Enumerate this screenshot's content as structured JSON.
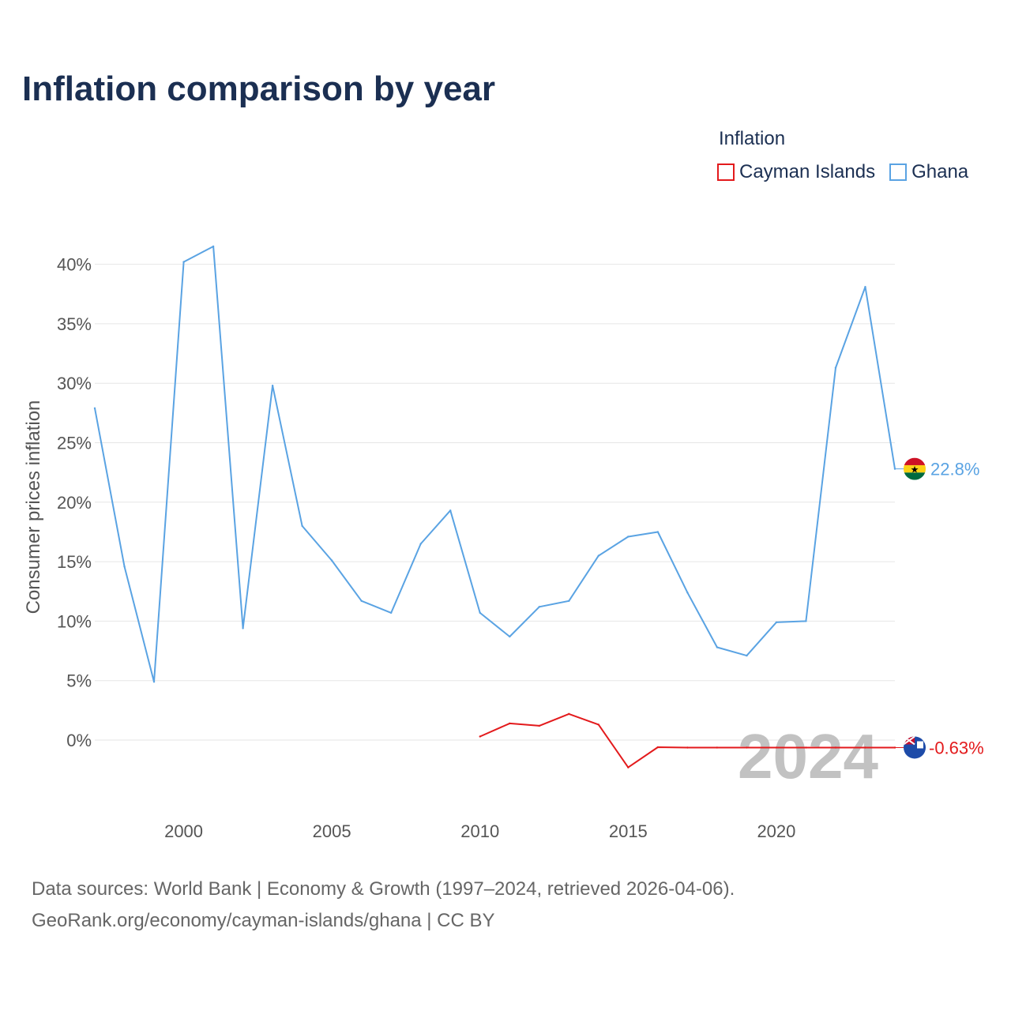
{
  "title": "Inflation comparison by year",
  "legend": {
    "title": "Inflation",
    "items": [
      {
        "label": "Cayman Islands",
        "color": "#e31a1c"
      },
      {
        "label": "Ghana",
        "color": "#5aa3e3"
      }
    ]
  },
  "current_year": "2024",
  "chart_data": {
    "type": "line",
    "title": "Inflation comparison by year",
    "xlabel": "",
    "ylabel": "Consumer prices inflation",
    "xlim": [
      1997,
      2024
    ],
    "ylim": [
      -6,
      43
    ],
    "y_ticks": [
      0,
      5,
      10,
      15,
      20,
      25,
      30,
      35,
      40
    ],
    "y_tick_labels": [
      "0%",
      "5%",
      "10%",
      "15%",
      "20%",
      "25%",
      "30%",
      "35%",
      "40%"
    ],
    "x_ticks": [
      2000,
      2005,
      2010,
      2015,
      2020
    ],
    "x_tick_labels": [
      "2000",
      "2005",
      "2010",
      "2015",
      "2020"
    ],
    "grid": "horizontal",
    "series": [
      {
        "name": "Ghana",
        "color": "#5aa3e3",
        "end_label": "22.8%",
        "x": [
          1997,
          1998,
          1999,
          2000,
          2001,
          2002,
          2003,
          2004,
          2005,
          2006,
          2007,
          2008,
          2009,
          2010,
          2011,
          2012,
          2013,
          2014,
          2015,
          2016,
          2017,
          2018,
          2019,
          2020,
          2021,
          2022,
          2023,
          2024
        ],
        "values": [
          27.9,
          14.6,
          4.9,
          40.2,
          41.5,
          9.4,
          29.8,
          18.0,
          15.1,
          11.7,
          10.7,
          16.5,
          19.3,
          10.7,
          8.7,
          11.2,
          11.7,
          15.5,
          17.1,
          17.5,
          12.4,
          7.8,
          7.1,
          9.9,
          10.0,
          31.3,
          38.1,
          22.8
        ]
      },
      {
        "name": "Cayman Islands",
        "color": "#e31a1c",
        "end_label": "-0.63%",
        "x": [
          2010,
          2011,
          2012,
          2013,
          2014,
          2015,
          2016,
          2017,
          2018,
          2019,
          2020,
          2021,
          2022,
          2023,
          2024
        ],
        "values": [
          0.3,
          1.4,
          1.2,
          2.2,
          1.3,
          -2.3,
          -0.6,
          -0.63,
          -0.63,
          -0.63,
          -0.63,
          -0.63,
          -0.63,
          -0.63,
          -0.63
        ]
      }
    ]
  },
  "footer": {
    "line1": "Data sources: World Bank | Economy & Growth (1997–2024, retrieved 2026-04-06).",
    "line2": "GeoRank.org/economy/cayman-islands/ghana | CC BY"
  }
}
